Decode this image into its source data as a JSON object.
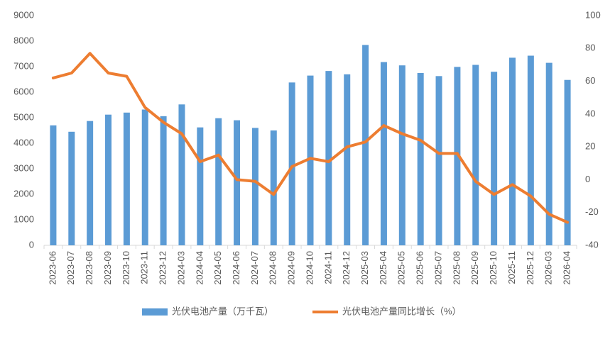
{
  "chart_data": {
    "type": "bar",
    "categories": [
      "2023-06",
      "2023-07",
      "2023-08",
      "2023-09",
      "2023-10",
      "2023-11",
      "2023-12",
      "2024-03",
      "2024-04",
      "2024-05",
      "2024-06",
      "2024-07",
      "2024-08",
      "2024-09",
      "2024-10",
      "2024-11",
      "2024-12",
      "2025-03",
      "2025-04",
      "2025-05",
      "2025-06",
      "2025-07",
      "2025-08",
      "2025-09",
      "2025-10",
      "2025-11",
      "2025-12",
      "2026-03",
      "2026-04"
    ],
    "series": [
      {
        "name": "光伏电池产量（万千瓦）",
        "type": "bar",
        "color": "#5b9bd5",
        "values": [
          4700,
          4450,
          4870,
          5120,
          5200,
          5320,
          5060,
          5520,
          4620,
          4980,
          4900,
          4600,
          4500,
          6380,
          6650,
          6830,
          6700,
          7850,
          7180,
          7050,
          6750,
          6630,
          6990,
          7070,
          6800,
          7350,
          7430,
          7150,
          6480
        ]
      },
      {
        "name": "光伏电池产量同比增长（%）",
        "type": "line",
        "axis": "y2",
        "color": "#ed7d31",
        "values": [
          62,
          65,
          77,
          65,
          63,
          44,
          35,
          28,
          11,
          15,
          0,
          -1,
          -9,
          8,
          13,
          11,
          20,
          23,
          33,
          28,
          24,
          16,
          16,
          -1,
          -9,
          -3,
          -10,
          -21,
          -26
        ]
      }
    ],
    "ylim": [
      0,
      9000
    ],
    "yticks": [
      0,
      1000,
      2000,
      3000,
      4000,
      5000,
      6000,
      7000,
      8000,
      9000
    ],
    "y2lim": [
      -40,
      100
    ],
    "y2ticks": [
      -40,
      -20,
      0,
      20,
      40,
      60,
      80,
      100
    ],
    "grid": false,
    "legend": "bottom"
  }
}
